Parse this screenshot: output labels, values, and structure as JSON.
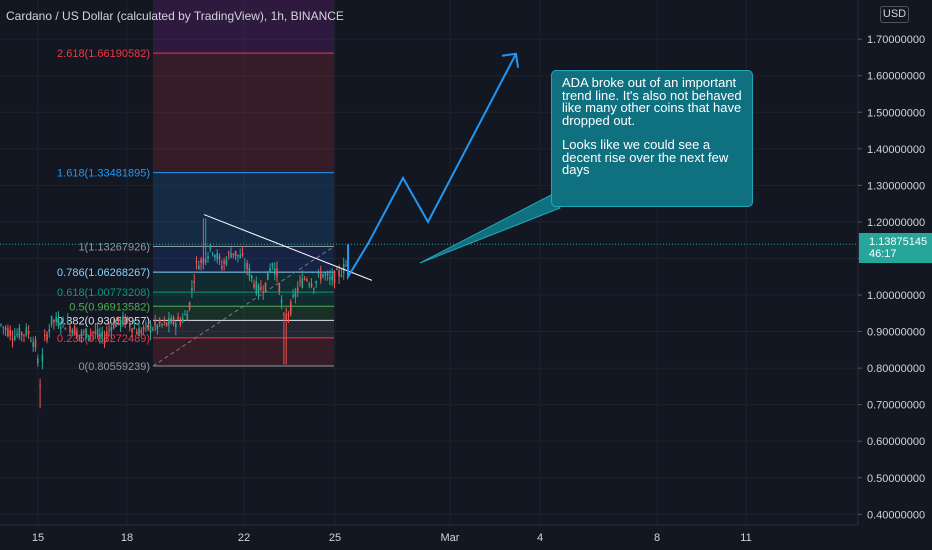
{
  "title": "Cardano / US Dollar (calculated by TradingView), 1h, BINANCE",
  "currency": "USD",
  "price_badge": {
    "price": "1.13875145",
    "countdown": "46:17"
  },
  "callout": {
    "paragraph1": "ADA broke out of an important trend line. It's also not behaved like many other coins that have dropped out.",
    "paragraph2": "Looks like we could see a decent rise over the next few days"
  },
  "colors": {
    "background": "#131722",
    "up_candle": "#26a69a",
    "down_candle": "#ef5350",
    "projection_arrow": "#2196f3",
    "callout_bg": "#0f7080",
    "trendline": "#ffffff"
  },
  "chart_data": {
    "type": "candlestick",
    "symbol": "ADA/USD",
    "interval": "1h",
    "exchange": "BINANCE",
    "x_tick_labels": [
      "15",
      "18",
      "22",
      "25",
      "Mar",
      "4",
      "8",
      "11"
    ],
    "y_tick_labels": [
      "1.70000000",
      "1.60000000",
      "1.50000000",
      "1.40000000",
      "1.30000000",
      "1.20000000",
      "1.10000000",
      "1.00000000",
      "0.90000000",
      "0.80000000",
      "0.70000000",
      "0.60000000",
      "0.50000000",
      "0.40000000"
    ],
    "y_ticks": [
      1.7,
      1.6,
      1.5,
      1.4,
      1.3,
      1.2,
      1.1,
      1.0,
      0.9,
      0.8,
      0.7,
      0.6,
      0.5,
      0.4
    ],
    "ylim": [
      0.38,
      1.73
    ],
    "last_price": 1.13875145,
    "fib_levels": [
      {
        "label": "0(0.80559239)",
        "ratio": 0,
        "price": 0.80559239,
        "color": "#9598a1"
      },
      {
        "label": "0.236(0.88272489)",
        "ratio": 0.236,
        "price": 0.88272489,
        "color": "#f23645"
      },
      {
        "label": "0.382(0.93053957)",
        "ratio": 0.382,
        "price": 0.93053957,
        "color": "#e0e3eb"
      },
      {
        "label": "0.5(0.96913582)",
        "ratio": 0.5,
        "price": 0.96913582,
        "color": "#4caf50"
      },
      {
        "label": "0.618(1.00773208)",
        "ratio": 0.618,
        "price": 1.00773208,
        "color": "#089981"
      },
      {
        "label": "0.786(1.06268267)",
        "ratio": 0.786,
        "price": 1.06268267,
        "color": "#88d1ff"
      },
      {
        "label": "1(1.13267926)",
        "ratio": 1,
        "price": 1.13267926,
        "color": "#9598a1"
      },
      {
        "label": "1.618(1.33481895)",
        "ratio": 1.618,
        "price": 1.33481895,
        "color": "#2196f3"
      },
      {
        "label": "2.618(1.66190582)",
        "ratio": 2.618,
        "price": 1.66190582,
        "color": "#f23645"
      }
    ],
    "trendline": {
      "from_price": 1.22,
      "to_price": 1.04
    },
    "projection_path_prices": [
      1.05,
      1.14,
      1.32,
      1.2,
      1.66
    ],
    "grid": true
  }
}
